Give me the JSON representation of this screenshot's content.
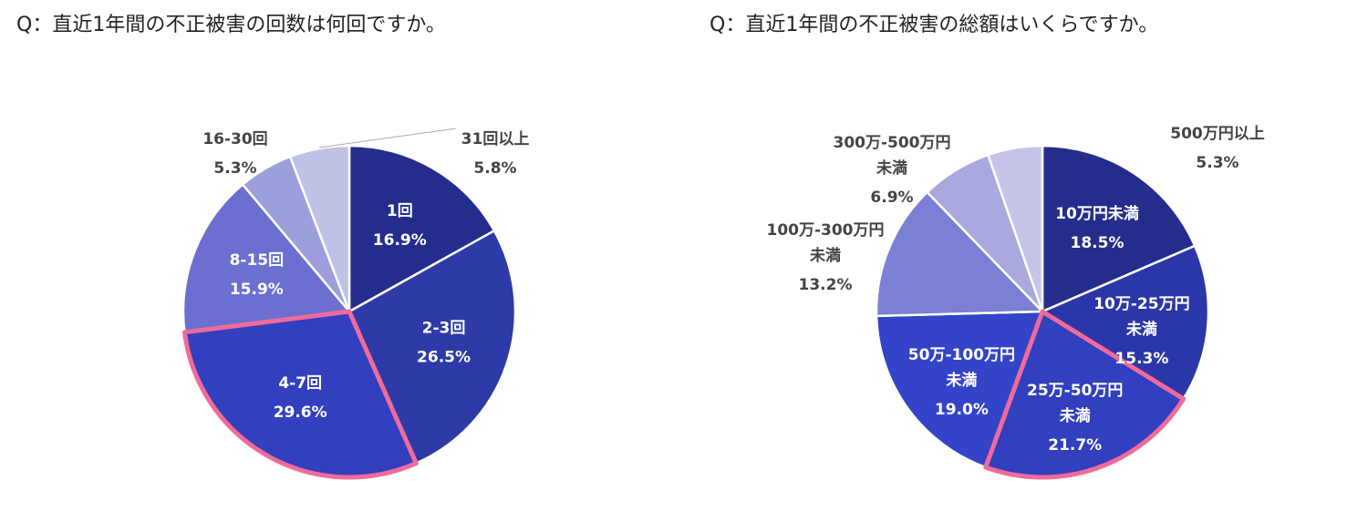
{
  "chart_data": [
    {
      "type": "pie",
      "title": "Q：直近1年間の不正被害の回数は何回ですか。",
      "categories": [
        "1回",
        "2-3回",
        "4-7回",
        "8-15回",
        "16-30回",
        "31回以上"
      ],
      "values": [
        16.9,
        26.5,
        29.6,
        15.9,
        5.3,
        5.8
      ],
      "value_labels": [
        "16.9%",
        "26.5%",
        "29.6%",
        "15.9%",
        "5.3%",
        "5.8%"
      ],
      "colors": [
        "#252d8c",
        "#2e3aa8",
        "#323fbf",
        "#6b70d0",
        "#9c9fdc",
        "#c0c1e6"
      ],
      "highlight": "4-7回",
      "highlight_color": "#f06a9a"
    },
    {
      "type": "pie",
      "title": "Q：直近1年間の不正被害の総額はいくらですか。",
      "categories": [
        "10万円未満",
        "10万-25万円未満",
        "25万-50万円未満",
        "50万-100万円未満",
        "100万-300万円未満",
        "300万-500万円未満",
        "500万円以上"
      ],
      "values": [
        18.5,
        15.3,
        21.7,
        19.0,
        13.2,
        6.9,
        5.3
      ],
      "value_labels": [
        "18.5%",
        "15.3%",
        "21.7%",
        "19.0%",
        "13.2%",
        "6.9%",
        "5.3%"
      ],
      "colors": [
        "#252d8c",
        "#2b37a8",
        "#323fbf",
        "#3444c8",
        "#7b80d4",
        "#a8a9de",
        "#c4c5e8"
      ],
      "highlight": "25万-50万円未満",
      "highlight_color": "#f06a9a"
    }
  ]
}
